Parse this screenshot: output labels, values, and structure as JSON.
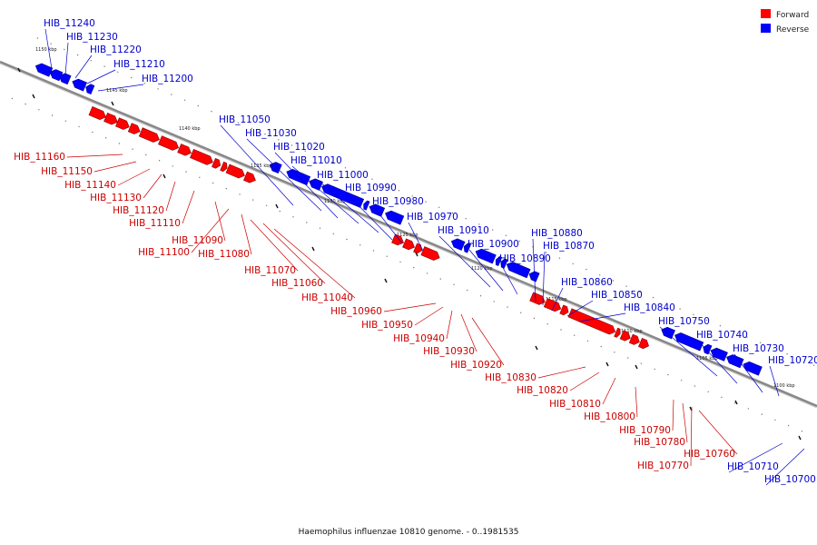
{
  "caption": "Haemophilus influenzae 10810 genome. - 0..1981535",
  "legend": {
    "forward": {
      "label": "Forward",
      "color": "#ff0000"
    },
    "reverse": {
      "label": "Reverse",
      "color": "#0000ff"
    }
  },
  "colors": {
    "forward": "#ff0000",
    "reverse": "#0000ff",
    "line_forward": "#cc0000",
    "line_reverse": "#0000cc",
    "axis": "#888888"
  },
  "axis": {
    "start_kbp": 1153,
    "end_kbp": 1097,
    "unit": "kbp",
    "tick_labels": [
      "1150 kbp",
      "1145 kbp",
      "1140 kbp",
      "1135 kbp",
      "1130 kbp",
      "1125 kbp",
      "1120 kbp",
      "1115 kbp",
      "1110 kbp",
      "1105 kbp",
      "1100 kbp"
    ]
  },
  "genes": [
    {
      "id": "HIB_11240",
      "strand": "reverse"
    },
    {
      "id": "HIB_11230",
      "strand": "reverse"
    },
    {
      "id": "HIB_11220",
      "strand": "reverse"
    },
    {
      "id": "HIB_11210",
      "strand": "reverse"
    },
    {
      "id": "HIB_11200",
      "strand": "reverse"
    },
    {
      "id": "HIB_11160",
      "strand": "forward"
    },
    {
      "id": "HIB_11150",
      "strand": "forward"
    },
    {
      "id": "HIB_11140",
      "strand": "forward"
    },
    {
      "id": "HIB_11130",
      "strand": "forward"
    },
    {
      "id": "HIB_11120",
      "strand": "forward"
    },
    {
      "id": "HIB_11110",
      "strand": "forward"
    },
    {
      "id": "HIB_11090",
      "strand": "forward"
    },
    {
      "id": "HIB_11100",
      "strand": "forward"
    },
    {
      "id": "HIB_11080",
      "strand": "forward"
    },
    {
      "id": "HIB_11070",
      "strand": "forward"
    },
    {
      "id": "HIB_11060",
      "strand": "forward"
    },
    {
      "id": "HIB_11040",
      "strand": "forward"
    },
    {
      "id": "HIB_11050",
      "strand": "reverse"
    },
    {
      "id": "HIB_11030",
      "strand": "reverse"
    },
    {
      "id": "HIB_11020",
      "strand": "reverse"
    },
    {
      "id": "HIB_11010",
      "strand": "reverse"
    },
    {
      "id": "HIB_11000",
      "strand": "reverse"
    },
    {
      "id": "HIB_10990",
      "strand": "reverse"
    },
    {
      "id": "HIB_10980",
      "strand": "reverse"
    },
    {
      "id": "HIB_10970",
      "strand": "reverse"
    },
    {
      "id": "HIB_10910",
      "strand": "reverse"
    },
    {
      "id": "HIB_10900",
      "strand": "reverse"
    },
    {
      "id": "HIB_10890",
      "strand": "reverse"
    },
    {
      "id": "HIB_10880",
      "strand": "reverse"
    },
    {
      "id": "HIB_10870",
      "strand": "reverse"
    },
    {
      "id": "HIB_10860",
      "strand": "reverse"
    },
    {
      "id": "HIB_10850",
      "strand": "reverse"
    },
    {
      "id": "HIB_10840",
      "strand": "reverse"
    },
    {
      "id": "HIB_10960",
      "strand": "forward"
    },
    {
      "id": "HIB_10950",
      "strand": "forward"
    },
    {
      "id": "HIB_10940",
      "strand": "forward"
    },
    {
      "id": "HIB_10930",
      "strand": "forward"
    },
    {
      "id": "HIB_10920",
      "strand": "forward"
    },
    {
      "id": "HIB_10830",
      "strand": "forward"
    },
    {
      "id": "HIB_10820",
      "strand": "forward"
    },
    {
      "id": "HIB_10810",
      "strand": "forward"
    },
    {
      "id": "HIB_10800",
      "strand": "forward"
    },
    {
      "id": "HIB_10790",
      "strand": "forward"
    },
    {
      "id": "HIB_10780",
      "strand": "forward"
    },
    {
      "id": "HIB_10770",
      "strand": "forward"
    },
    {
      "id": "HIB_10760",
      "strand": "forward"
    },
    {
      "id": "HIB_10750",
      "strand": "reverse"
    },
    {
      "id": "HIB_10740",
      "strand": "reverse"
    },
    {
      "id": "HIB_10730",
      "strand": "reverse"
    },
    {
      "id": "HIB_10720",
      "strand": "reverse"
    },
    {
      "id": "HIB_10710",
      "strand": "reverse"
    },
    {
      "id": "HIB_10700",
      "strand": "reverse"
    }
  ]
}
